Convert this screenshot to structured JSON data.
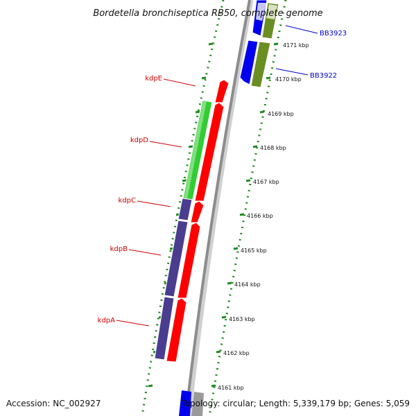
{
  "title": "Bordetella bronchiseptica RB50, complete genome",
  "footer": {
    "accession": "Accession: NC_002927",
    "topology": "Topology: circular; Length: 5,339,179 bp; Genes: 5,059"
  },
  "colors": {
    "backbone": "#8c8c8c",
    "ruler": "#1f8a1f",
    "kdp_label": "#cc0000",
    "bb_label": "#0000cc",
    "red_gene": "#ff0000",
    "green_gene": "#33cc33",
    "purple_gene": "#4a3d8f",
    "blue_gene": "#0000ee",
    "olive_gene": "#6b8e23"
  },
  "kbp_labels": [
    "4171 kbp",
    "4170 kbp",
    "4169 kbp",
    "4168 kbp",
    "4167 kbp",
    "4166 kbp",
    "4165 kbp",
    "4164 kbp",
    "4163 kbp",
    "4162 kbp",
    "4161 kbp"
  ],
  "genes": {
    "kdpE": "kdpE",
    "kdpD": "kdpD",
    "kdpC": "kdpC",
    "kdpB": "kdpB",
    "kdpA": "kdpA",
    "BB3923": "BB3923",
    "BB3922": "BB3922"
  }
}
